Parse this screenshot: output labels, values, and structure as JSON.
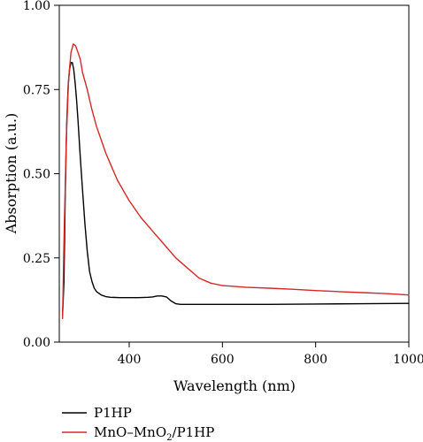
{
  "chart_data": {
    "type": "line",
    "xlabel": "Wavelength (nm)",
    "ylabel": "Absorption (a.u.)",
    "xlim": [
      250,
      1000
    ],
    "ylim": [
      0.0,
      1.0
    ],
    "x_ticks": [
      400,
      600,
      800,
      1000
    ],
    "x_tick_labels": [
      "400",
      "600",
      "800",
      "1000"
    ],
    "y_ticks": [
      0.0,
      0.25,
      0.5,
      0.75,
      1.0
    ],
    "y_tick_labels": [
      "0.00",
      "0.25",
      "0.50",
      "0.75",
      "1.00"
    ],
    "grid": false,
    "legend_position": "bottom-left, below plot",
    "series": [
      {
        "name": "P1HP",
        "color": "#000000",
        "x": [
          257,
          260,
          263,
          266,
          269,
          272,
          275,
          278,
          281,
          284,
          287,
          290,
          295,
          300,
          305,
          310,
          315,
          320,
          325,
          330,
          340,
          350,
          360,
          380,
          400,
          420,
          440,
          450,
          460,
          470,
          480,
          490,
          500,
          510,
          550,
          600,
          700,
          800,
          900,
          1000
        ],
        "y": [
          0.08,
          0.18,
          0.45,
          0.65,
          0.76,
          0.81,
          0.83,
          0.83,
          0.81,
          0.77,
          0.72,
          0.66,
          0.55,
          0.45,
          0.35,
          0.27,
          0.21,
          0.18,
          0.16,
          0.15,
          0.14,
          0.135,
          0.133,
          0.132,
          0.132,
          0.132,
          0.133,
          0.134,
          0.137,
          0.137,
          0.134,
          0.122,
          0.114,
          0.112,
          0.112,
          0.112,
          0.112,
          0.113,
          0.114,
          0.115
        ]
      },
      {
        "name": "MnO–MnO2/P1HP",
        "color": "#d62728",
        "x": [
          257,
          260,
          265,
          270,
          275,
          280,
          285,
          290,
          295,
          300,
          310,
          320,
          330,
          350,
          375,
          400,
          425,
          450,
          475,
          500,
          525,
          550,
          575,
          600,
          650,
          700,
          750,
          800,
          850,
          900,
          950,
          1000
        ],
        "y": [
          0.07,
          0.3,
          0.6,
          0.78,
          0.86,
          0.885,
          0.88,
          0.86,
          0.84,
          0.8,
          0.75,
          0.69,
          0.64,
          0.56,
          0.48,
          0.42,
          0.37,
          0.33,
          0.29,
          0.25,
          0.22,
          0.19,
          0.175,
          0.168,
          0.163,
          0.16,
          0.157,
          0.153,
          0.15,
          0.147,
          0.144,
          0.14
        ]
      }
    ]
  },
  "legend": [
    {
      "label_main": "P1HP",
      "label_sub": "",
      "label_tail": ""
    },
    {
      "label_main": "MnO–MnO",
      "label_sub": "2",
      "label_tail": "/P1HP"
    }
  ]
}
